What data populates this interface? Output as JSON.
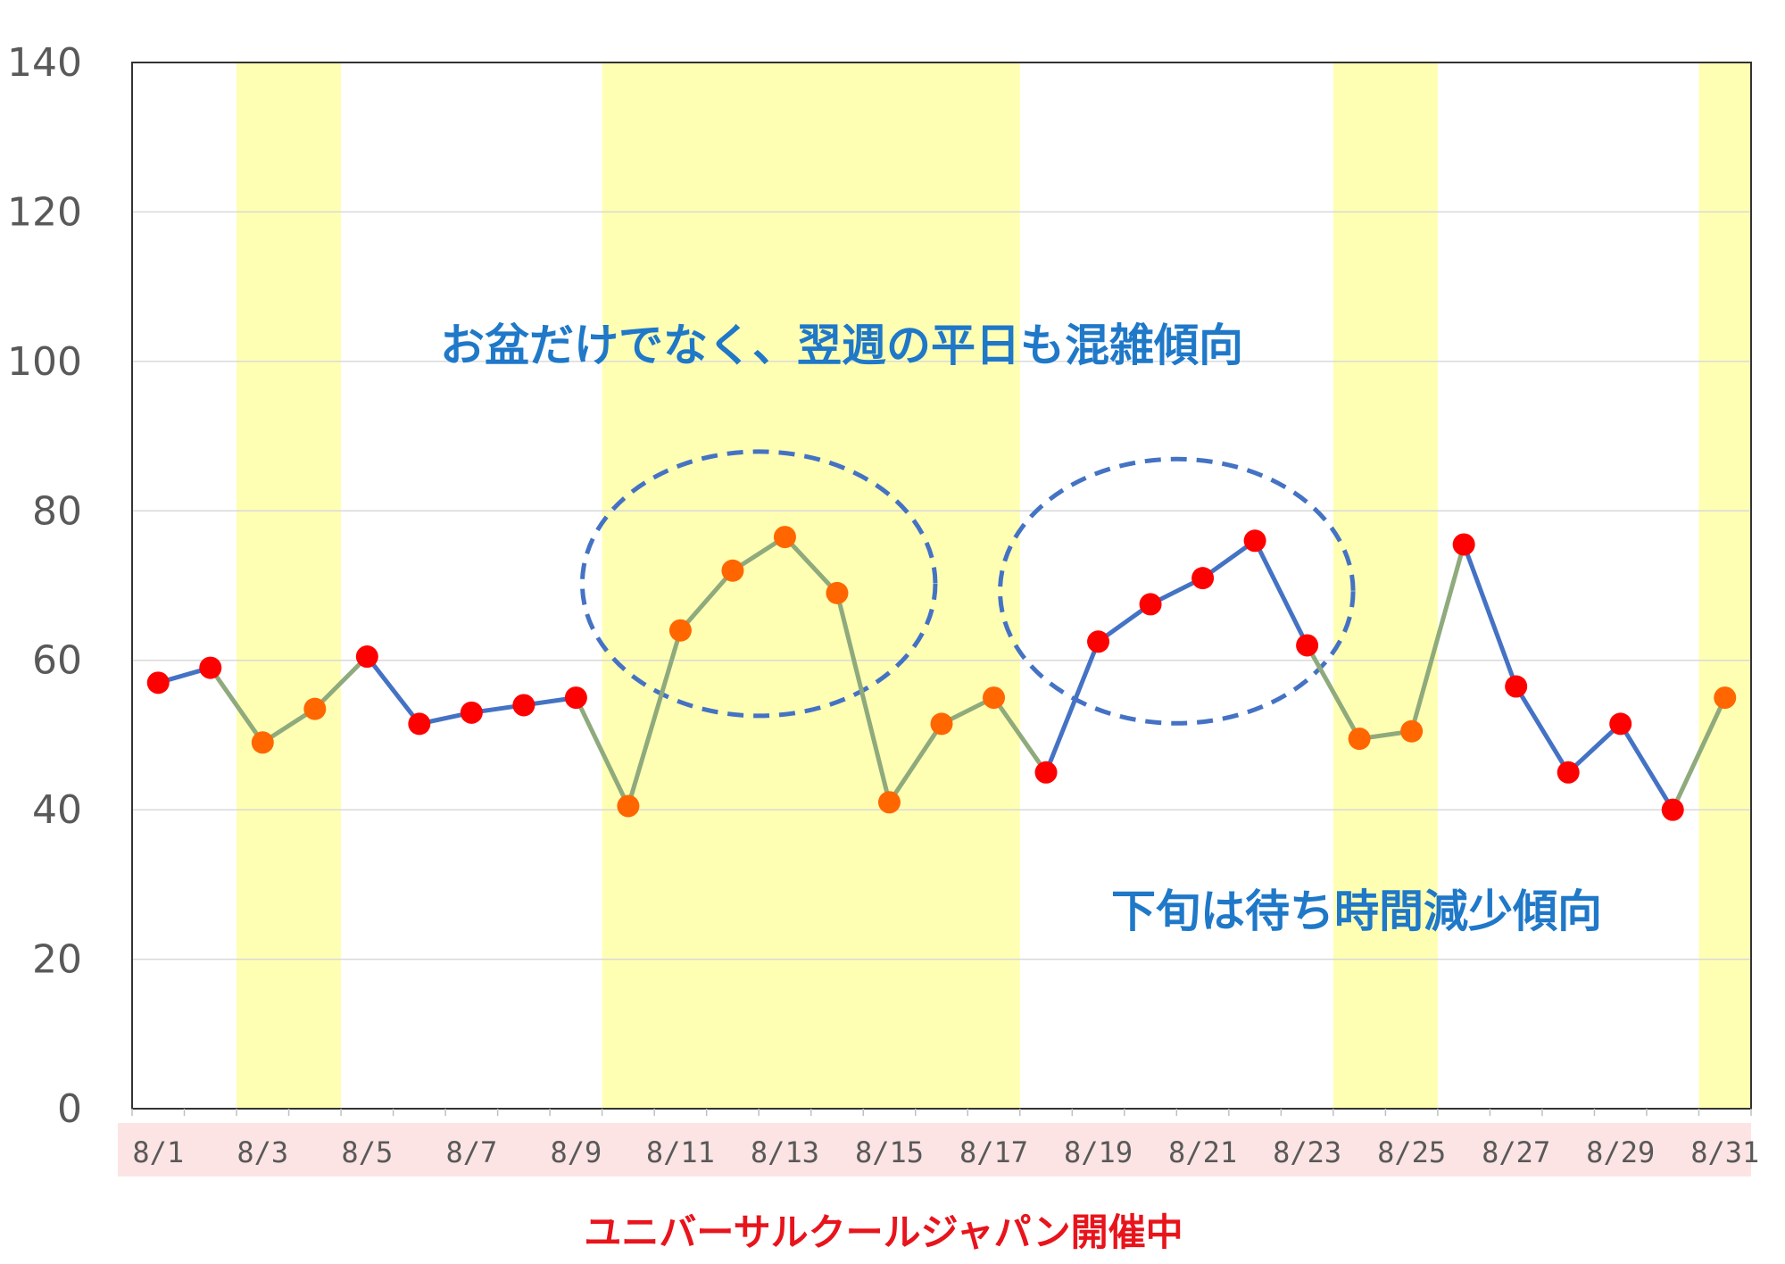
{
  "chart_data": {
    "type": "line",
    "x": [
      "8/1",
      "8/2",
      "8/3",
      "8/4",
      "8/5",
      "8/6",
      "8/7",
      "8/8",
      "8/9",
      "8/10",
      "8/11",
      "8/12",
      "8/13",
      "8/14",
      "8/15",
      "8/16",
      "8/17",
      "8/18",
      "8/19",
      "8/20",
      "8/21",
      "8/22",
      "8/23",
      "8/24",
      "8/25",
      "8/26",
      "8/27",
      "8/28",
      "8/29",
      "8/30",
      "8/31"
    ],
    "x_tick_labels": [
      "8/1",
      "8/3",
      "8/5",
      "8/7",
      "8/9",
      "8/11",
      "8/13",
      "8/15",
      "8/17",
      "8/19",
      "8/21",
      "8/23",
      "8/25",
      "8/27",
      "8/29",
      "8/31"
    ],
    "values": [
      57,
      59,
      49,
      53.5,
      60.5,
      51.5,
      53,
      54,
      55,
      40.5,
      64,
      72,
      76.5,
      69,
      41,
      51.5,
      55,
      45,
      62.5,
      67.5,
      71,
      76,
      62,
      49.5,
      50.5,
      75.5,
      56.5,
      45,
      51.5,
      40,
      55
    ],
    "ylim": [
      0,
      140
    ],
    "y_ticks": [
      0,
      20,
      40,
      60,
      80,
      100,
      120,
      140
    ],
    "grid": true,
    "highlight_ranges": [
      [
        "8/3",
        "8/4"
      ],
      [
        "8/10",
        "8/17"
      ],
      [
        "8/24",
        "8/25"
      ],
      [
        "8/31",
        "8/31"
      ]
    ],
    "highlight_color": "#ffffb3",
    "line_color_weekday": "#4472c4",
    "line_color_highlight": "#8faa7c",
    "marker_color_weekday": "#ff0000",
    "marker_color_highlight": "#ff6600",
    "event_band_color": "#fde4e4",
    "event_band_range": [
      "8/1",
      "8/31"
    ],
    "circled_groups": [
      [
        "8/11",
        "8/14"
      ],
      [
        "8/19",
        "8/22"
      ]
    ],
    "circle_color": "#4472c4",
    "annotations": [
      {
        "text": "お盆だけでなく、翌週の平日も混雑傾向",
        "color": "#1f78c8"
      },
      {
        "text": "下旬は待ち時間減少傾向",
        "color": "#1f78c8"
      }
    ],
    "footer_label": "ユニバーサルクールジャパン開催中",
    "footer_color": "#e8141c"
  }
}
